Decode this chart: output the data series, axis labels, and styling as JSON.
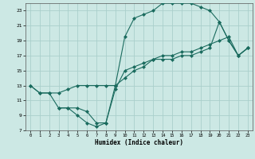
{
  "xlabel": "Humidex (Indice chaleur)",
  "bg_color": "#cce8e4",
  "grid_color": "#aacfcb",
  "line_color": "#1a6b5e",
  "xlim": [
    -0.5,
    23.5
  ],
  "ylim": [
    7,
    24
  ],
  "xticks": [
    0,
    1,
    2,
    3,
    4,
    5,
    6,
    7,
    8,
    9,
    10,
    11,
    12,
    13,
    14,
    15,
    16,
    17,
    18,
    19,
    20,
    21,
    22,
    23
  ],
  "yticks": [
    7,
    9,
    11,
    13,
    15,
    17,
    19,
    21,
    23
  ],
  "line1_x": [
    0,
    1,
    2,
    3,
    4,
    5,
    6,
    7,
    8,
    9,
    10,
    11,
    12,
    13,
    14,
    15,
    16,
    17,
    18,
    19,
    20,
    21,
    22,
    23
  ],
  "line1_y": [
    13,
    12,
    12,
    12,
    12.5,
    13,
    13,
    13,
    13,
    13,
    14,
    15,
    15.5,
    16.5,
    17,
    17,
    17.5,
    17.5,
    18,
    18.5,
    19,
    19.5,
    17,
    18
  ],
  "line2_x": [
    0,
    1,
    2,
    3,
    4,
    5,
    6,
    7,
    8,
    9,
    10,
    11,
    12,
    13,
    14,
    15,
    16,
    17,
    18,
    19,
    20,
    21,
    22,
    23
  ],
  "line2_y": [
    13,
    12,
    12,
    10,
    10,
    9,
    8,
    7.5,
    8,
    13,
    19.5,
    22,
    22.5,
    23,
    24,
    24,
    24,
    24,
    23.5,
    23,
    21.5,
    19,
    17,
    18
  ],
  "line3_x": [
    3,
    4,
    5,
    6,
    7,
    8,
    9,
    10,
    11,
    12,
    13,
    14,
    15,
    16,
    17,
    18,
    19,
    20,
    21,
    22,
    23
  ],
  "line3_y": [
    10,
    10,
    10,
    9.5,
    8,
    8,
    12.5,
    15,
    15.5,
    16,
    16.5,
    16.5,
    16.5,
    17,
    17,
    17.5,
    18,
    21.5,
    19,
    17,
    18
  ]
}
